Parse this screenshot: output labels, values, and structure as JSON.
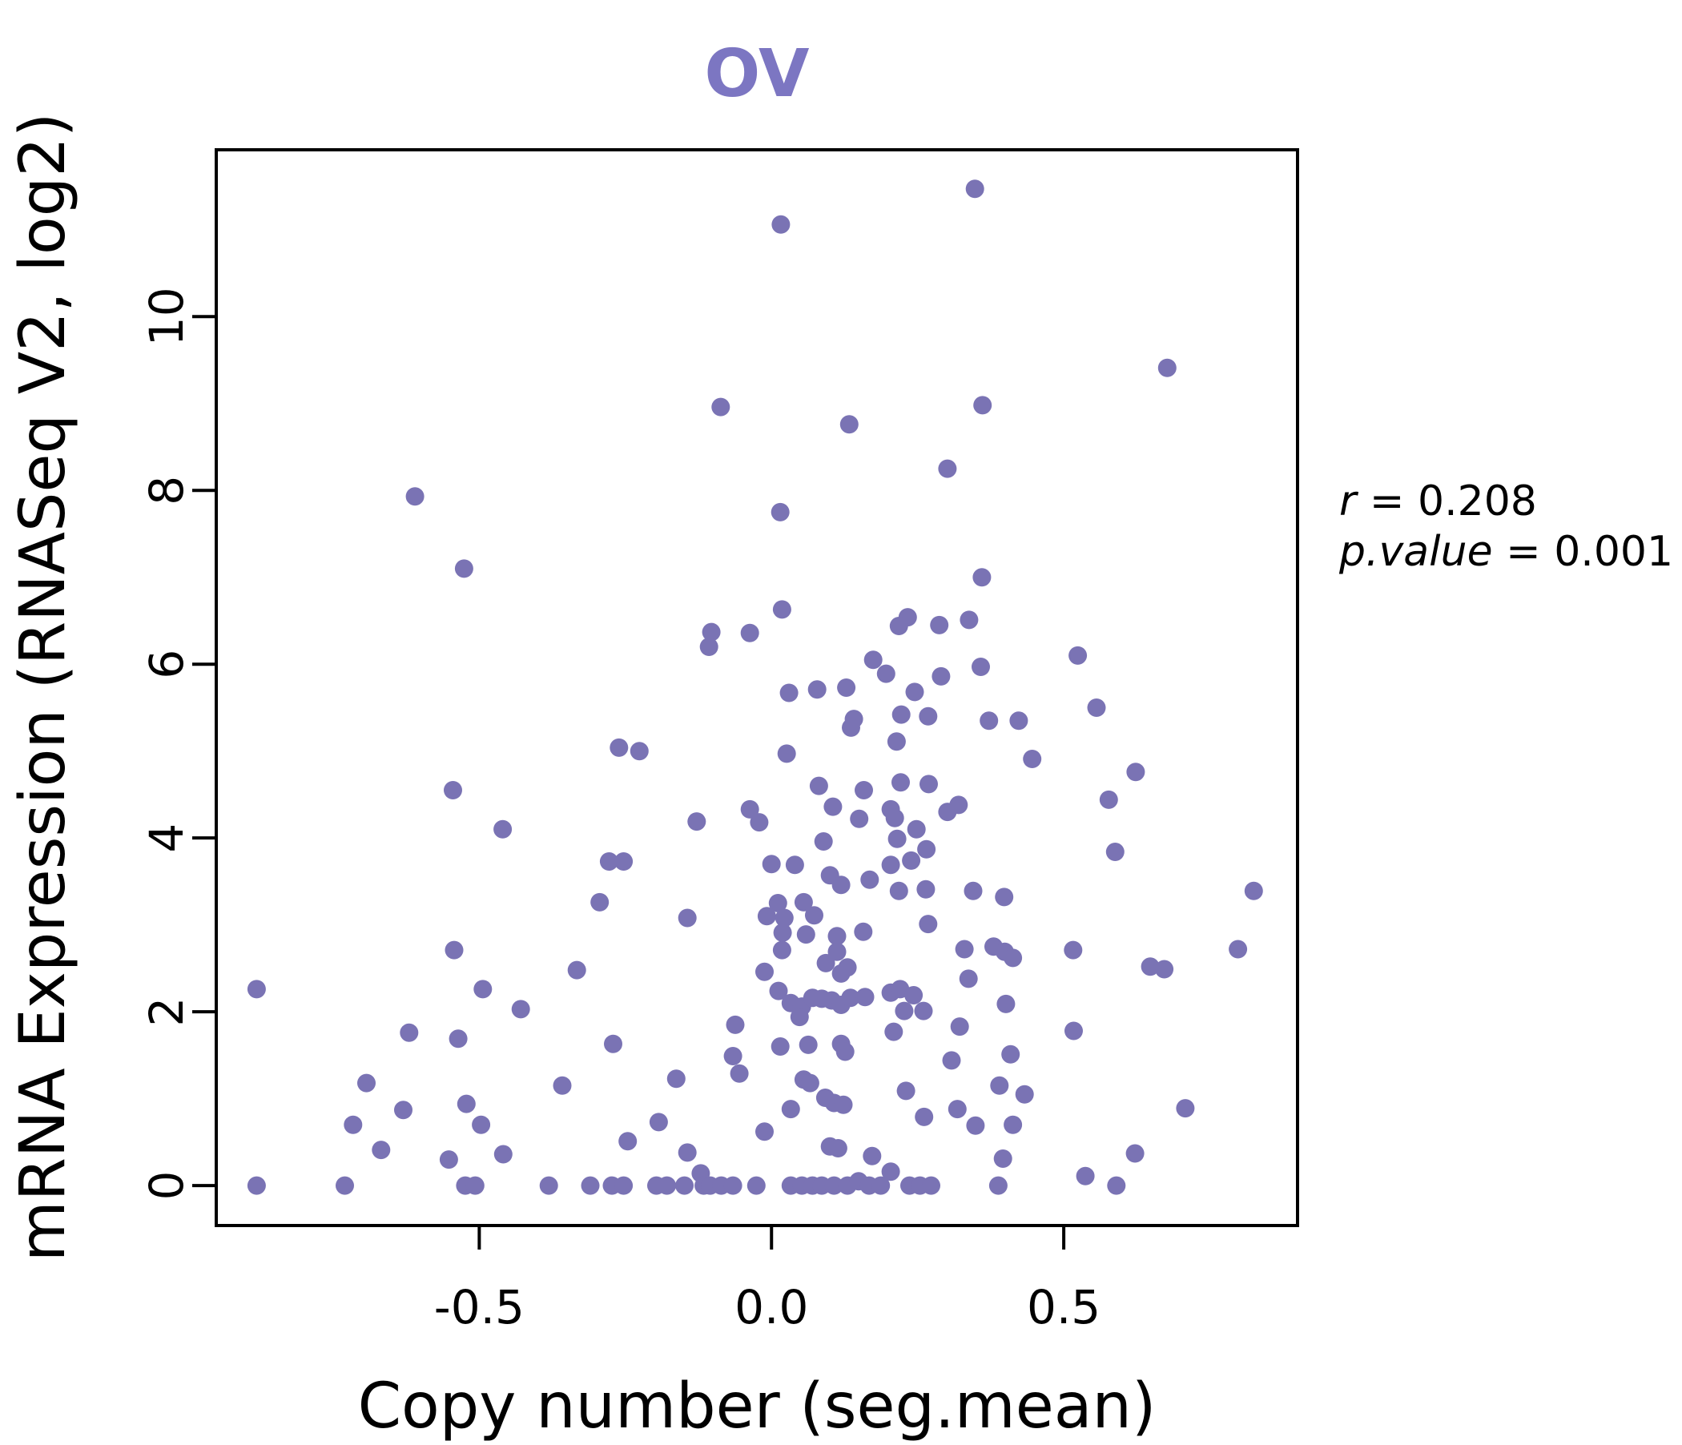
{
  "title": "OV",
  "title_color": "#7C76C2",
  "point_color": "#7A73B4",
  "axis_color": "#000000",
  "chart_data": {
    "type": "scatter",
    "title": "OV",
    "xlabel": "Copy number (seg.mean)",
    "ylabel": "mRNA Expression (RNASeq V2, log2)",
    "xlim": [
      -0.95,
      0.9
    ],
    "ylim": [
      -0.46,
      11.92
    ],
    "grid": false,
    "legend": "none",
    "x_tick_labels": [
      "-0.5",
      "0.0",
      "0.5"
    ],
    "x_tick_values": [
      -0.5,
      0.0,
      0.5
    ],
    "y_tick_labels": [
      "0",
      "2",
      "4",
      "6",
      "8",
      "10"
    ],
    "y_tick_values": [
      0,
      2,
      4,
      6,
      8,
      10
    ],
    "annotation": {
      "r_label": "r",
      "r_value": " = 0.208",
      "p_label": "p.value",
      "p_value": " = 0.001"
    },
    "points": [
      [
        -0.61,
        7.93
      ],
      [
        0.016,
        11.06
      ],
      [
        0.348,
        11.47
      ],
      [
        -0.087,
        8.96
      ],
      [
        0.133,
        8.76
      ],
      [
        0.361,
        8.98
      ],
      [
        0.677,
        9.41
      ],
      [
        0.301,
        8.25
      ],
      [
        0.015,
        7.75
      ],
      [
        -0.526,
        7.1
      ],
      [
        -0.545,
        4.55
      ],
      [
        -0.46,
        4.1
      ],
      [
        0.018,
        6.63
      ],
      [
        -0.103,
        6.37
      ],
      [
        -0.037,
        6.36
      ],
      [
        -0.107,
        6.2
      ],
      [
        0.233,
        6.54
      ],
      [
        0.287,
        6.45
      ],
      [
        0.218,
        6.44
      ],
      [
        0.174,
        6.05
      ],
      [
        0.196,
        5.89
      ],
      [
        0.29,
        5.86
      ],
      [
        0.03,
        5.67
      ],
      [
        0.078,
        5.71
      ],
      [
        0.128,
        5.73
      ],
      [
        0.245,
        5.68
      ],
      [
        0.141,
        5.37
      ],
      [
        0.136,
        5.27
      ],
      [
        0.222,
        5.42
      ],
      [
        0.268,
        5.4
      ],
      [
        0.214,
        5.11
      ],
      [
        -0.261,
        5.04
      ],
      [
        -0.226,
        5.0
      ],
      [
        0.026,
        4.97
      ],
      [
        0.081,
        4.6
      ],
      [
        0.105,
        4.36
      ],
      [
        0.158,
        4.55
      ],
      [
        0.221,
        4.64
      ],
      [
        0.269,
        4.62
      ],
      [
        0.15,
        4.22
      ],
      [
        0.204,
        4.33
      ],
      [
        0.211,
        4.23
      ],
      [
        -0.128,
        4.19
      ],
      [
        -0.037,
        4.33
      ],
      [
        -0.021,
        4.18
      ],
      [
        0.089,
        3.96
      ],
      [
        0.215,
        3.99
      ],
      [
        0.248,
        4.1
      ],
      [
        0.265,
        3.87
      ],
      [
        -0.278,
        3.73
      ],
      [
        -0.253,
        3.73
      ],
      [
        0.0,
        3.7
      ],
      [
        0.04,
        3.69
      ],
      [
        0.204,
        3.69
      ],
      [
        0.239,
        3.74
      ],
      [
        0.1,
        3.57
      ],
      [
        0.168,
        3.52
      ],
      [
        0.119,
        3.46
      ],
      [
        0.36,
        7.0
      ],
      [
        0.338,
        6.51
      ],
      [
        0.358,
        5.97
      ],
      [
        0.524,
        6.1
      ],
      [
        0.556,
        5.5
      ],
      [
        0.372,
        5.35
      ],
      [
        0.423,
        5.35
      ],
      [
        0.446,
        4.91
      ],
      [
        0.623,
        4.76
      ],
      [
        0.32,
        4.38
      ],
      [
        0.301,
        4.3
      ],
      [
        0.577,
        4.44
      ],
      [
        0.588,
        3.84
      ],
      [
        -0.543,
        2.71
      ],
      [
        -0.333,
        2.48
      ],
      [
        -0.881,
        2.26
      ],
      [
        -0.494,
        2.26
      ],
      [
        -0.429,
        2.03
      ],
      [
        -0.62,
        1.76
      ],
      [
        -0.536,
        1.69
      ],
      [
        -0.693,
        1.18
      ],
      [
        -0.358,
        1.15
      ],
      [
        -0.522,
        0.94
      ],
      [
        -0.63,
        0.87
      ],
      [
        -0.497,
        0.7
      ],
      [
        -0.716,
        0.7
      ],
      [
        -0.668,
        0.41
      ],
      [
        -0.552,
        0.3
      ],
      [
        -0.459,
        0.36
      ],
      [
        -0.881,
        0.0
      ],
      [
        -0.73,
        0.0
      ],
      [
        -0.524,
        0.0
      ],
      [
        -0.507,
        0.0
      ],
      [
        -0.381,
        0.0
      ],
      [
        -0.294,
        3.26
      ],
      [
        0.011,
        3.25
      ],
      [
        0.055,
        3.26
      ],
      [
        0.218,
        3.39
      ],
      [
        0.264,
        3.41
      ],
      [
        -0.008,
        3.1
      ],
      [
        0.022,
        3.08
      ],
      [
        0.073,
        3.11
      ],
      [
        -0.144,
        3.08
      ],
      [
        0.268,
        3.01
      ],
      [
        0.019,
        2.91
      ],
      [
        0.059,
        2.89
      ],
      [
        0.112,
        2.87
      ],
      [
        0.157,
        2.92
      ],
      [
        0.018,
        2.71
      ],
      [
        0.112,
        2.69
      ],
      [
        0.093,
        2.56
      ],
      [
        0.13,
        2.51
      ],
      [
        0.119,
        2.44
      ],
      [
        -0.012,
        2.46
      ],
      [
        0.012,
        2.24
      ],
      [
        0.033,
        2.1
      ],
      [
        0.052,
        2.06
      ],
      [
        0.07,
        2.16
      ],
      [
        0.086,
        2.15
      ],
      [
        0.103,
        2.13
      ],
      [
        0.119,
        2.08
      ],
      [
        0.135,
        2.16
      ],
      [
        0.16,
        2.17
      ],
      [
        0.204,
        2.22
      ],
      [
        0.22,
        2.26
      ],
      [
        0.243,
        2.19
      ],
      [
        0.048,
        1.94
      ],
      [
        0.227,
        2.01
      ],
      [
        0.26,
        2.01
      ],
      [
        -0.062,
        1.85
      ],
      [
        0.209,
        1.77
      ],
      [
        -0.271,
        1.63
      ],
      [
        0.015,
        1.6
      ],
      [
        0.063,
        1.62
      ],
      [
        0.119,
        1.63
      ],
      [
        0.126,
        1.54
      ],
      [
        -0.066,
        1.49
      ],
      [
        -0.055,
        1.29
      ],
      [
        -0.163,
        1.23
      ],
      [
        0.055,
        1.22
      ],
      [
        0.066,
        1.18
      ],
      [
        0.092,
        1.01
      ],
      [
        0.107,
        0.95
      ],
      [
        0.123,
        0.93
      ],
      [
        0.033,
        0.88
      ],
      [
        0.23,
        1.09
      ],
      [
        0.261,
        0.79
      ],
      [
        -0.193,
        0.73
      ],
      [
        -0.012,
        0.62
      ],
      [
        -0.246,
        0.51
      ],
      [
        -0.144,
        0.38
      ],
      [
        0.1,
        0.45
      ],
      [
        0.114,
        0.43
      ],
      [
        0.172,
        0.34
      ],
      [
        0.204,
        0.16
      ],
      [
        -0.121,
        0.14
      ],
      [
        -0.31,
        0.0
      ],
      [
        -0.273,
        0.0
      ],
      [
        -0.253,
        0.0
      ],
      [
        -0.197,
        0.0
      ],
      [
        -0.179,
        0.0
      ],
      [
        -0.149,
        0.0
      ],
      [
        -0.116,
        0.0
      ],
      [
        -0.105,
        0.0
      ],
      [
        -0.086,
        0.0
      ],
      [
        -0.066,
        0.0
      ],
      [
        -0.026,
        0.0
      ],
      [
        0.033,
        0.0
      ],
      [
        0.052,
        0.0
      ],
      [
        0.07,
        0.0
      ],
      [
        0.086,
        0.0
      ],
      [
        0.107,
        0.0
      ],
      [
        0.13,
        0.0
      ],
      [
        0.149,
        0.05
      ],
      [
        0.167,
        0.0
      ],
      [
        0.187,
        0.0
      ],
      [
        0.236,
        0.0
      ],
      [
        0.254,
        0.0
      ],
      [
        0.273,
        0.0
      ],
      [
        0.345,
        3.39
      ],
      [
        0.398,
        3.32
      ],
      [
        0.825,
        3.39
      ],
      [
        0.33,
        2.72
      ],
      [
        0.38,
        2.75
      ],
      [
        0.399,
        2.69
      ],
      [
        0.413,
        2.62
      ],
      [
        0.516,
        2.71
      ],
      [
        0.648,
        2.52
      ],
      [
        0.672,
        2.49
      ],
      [
        0.798,
        2.72
      ],
      [
        0.337,
        2.38
      ],
      [
        0.401,
        2.09
      ],
      [
        0.322,
        1.83
      ],
      [
        0.517,
        1.78
      ],
      [
        0.409,
        1.51
      ],
      [
        0.308,
        1.44
      ],
      [
        0.39,
        1.15
      ],
      [
        0.433,
        1.05
      ],
      [
        0.318,
        0.88
      ],
      [
        0.349,
        0.69
      ],
      [
        0.413,
        0.7
      ],
      [
        0.708,
        0.89
      ],
      [
        0.396,
        0.31
      ],
      [
        0.622,
        0.37
      ],
      [
        0.537,
        0.11
      ],
      [
        0.59,
        0.0
      ],
      [
        0.388,
        0.0
      ]
    ]
  }
}
